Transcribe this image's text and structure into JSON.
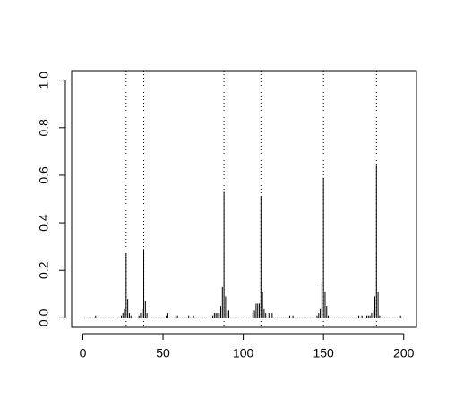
{
  "chart_data": {
    "type": "spike",
    "x": [
      1,
      2,
      3,
      4,
      5,
      6,
      7,
      8,
      9,
      10,
      11,
      12,
      13,
      14,
      15,
      16,
      17,
      18,
      19,
      20,
      21,
      22,
      23,
      24,
      25,
      26,
      27,
      28,
      29,
      30,
      31,
      32,
      33,
      34,
      35,
      36,
      37,
      38,
      39,
      40,
      41,
      42,
      43,
      44,
      45,
      46,
      47,
      48,
      49,
      50,
      51,
      52,
      53,
      54,
      55,
      56,
      57,
      58,
      59,
      60,
      61,
      62,
      63,
      64,
      65,
      66,
      67,
      68,
      69,
      70,
      71,
      72,
      73,
      74,
      75,
      76,
      77,
      78,
      79,
      80,
      81,
      82,
      83,
      84,
      85,
      86,
      87,
      88,
      89,
      90,
      91,
      92,
      93,
      94,
      95,
      96,
      97,
      98,
      99,
      100,
      101,
      102,
      103,
      104,
      105,
      106,
      107,
      108,
      109,
      110,
      111,
      112,
      113,
      114,
      115,
      116,
      117,
      118,
      119,
      120,
      121,
      122,
      123,
      124,
      125,
      126,
      127,
      128,
      129,
      130,
      131,
      132,
      133,
      134,
      135,
      136,
      137,
      138,
      139,
      140,
      141,
      142,
      143,
      144,
      145,
      146,
      147,
      148,
      149,
      150,
      151,
      152,
      153,
      154,
      155,
      156,
      157,
      158,
      159,
      160,
      161,
      162,
      163,
      164,
      165,
      166,
      167,
      168,
      169,
      170,
      171,
      172,
      173,
      174,
      175,
      176,
      177,
      178,
      179,
      180,
      181,
      182,
      183,
      184,
      185,
      186,
      187,
      188,
      189,
      190,
      191,
      192,
      193,
      194,
      195,
      196,
      197,
      198,
      199,
      200
    ],
    "values": [
      0,
      0,
      0,
      0,
      0,
      0,
      0,
      0.01,
      0,
      0.01,
      0,
      0,
      0,
      0,
      0,
      0,
      0,
      0,
      0,
      0,
      0,
      0,
      0,
      0.01,
      0.02,
      0.04,
      0.27,
      0.08,
      0.02,
      0.01,
      0,
      0,
      0,
      0,
      0.01,
      0.02,
      0.04,
      0.29,
      0.07,
      0.02,
      0,
      0,
      0,
      0,
      0,
      0,
      0,
      0,
      0,
      0,
      0,
      0.01,
      0.02,
      0,
      0,
      0,
      0,
      0.01,
      0.01,
      0,
      0,
      0,
      0,
      0,
      0,
      0.01,
      0,
      0,
      0.01,
      0,
      0,
      0,
      0,
      0,
      0,
      0,
      0,
      0,
      0,
      0,
      0.01,
      0.02,
      0.02,
      0.02,
      0.02,
      0.05,
      0.13,
      0.53,
      0.09,
      0.03,
      0.03,
      0,
      0,
      0,
      0,
      0,
      0,
      0,
      0,
      0,
      0,
      0,
      0,
      0,
      0,
      0.02,
      0.03,
      0.06,
      0.06,
      0.06,
      0.51,
      0.11,
      0.04,
      0.02,
      0,
      0.02,
      0,
      0.02,
      0,
      0,
      0,
      0,
      0,
      0,
      0,
      0,
      0,
      0,
      0.01,
      0,
      0.01,
      0,
      0,
      0,
      0,
      0,
      0,
      0,
      0,
      0,
      0,
      0,
      0,
      0,
      0,
      0.01,
      0.02,
      0.04,
      0.14,
      0.59,
      0.11,
      0.05,
      0.01,
      0,
      0,
      0,
      0,
      0,
      0,
      0,
      0,
      0,
      0,
      0,
      0,
      0,
      0,
      0,
      0,
      0,
      0,
      0.01,
      0,
      0.01,
      0,
      0,
      0.01,
      0.01,
      0.01,
      0.02,
      0.03,
      0.09,
      0.64,
      0.11,
      0.01,
      0,
      0,
      0,
      0,
      0,
      0,
      0,
      0,
      0,
      0,
      0,
      0,
      0.01,
      0,
      0
    ],
    "color": "#000000",
    "vlines": [
      27,
      38,
      88,
      111,
      150,
      183
    ],
    "xlim": [
      -6.96,
      207.96
    ],
    "ylim": [
      -0.04,
      1.04
    ],
    "xticks": [
      0,
      50,
      100,
      150,
      200
    ],
    "yticks": [
      {
        "value": 0,
        "label": "0.0"
      },
      0.2,
      0.4,
      0.6,
      0.8,
      {
        "value": 1,
        "label": "1.0"
      }
    ]
  }
}
